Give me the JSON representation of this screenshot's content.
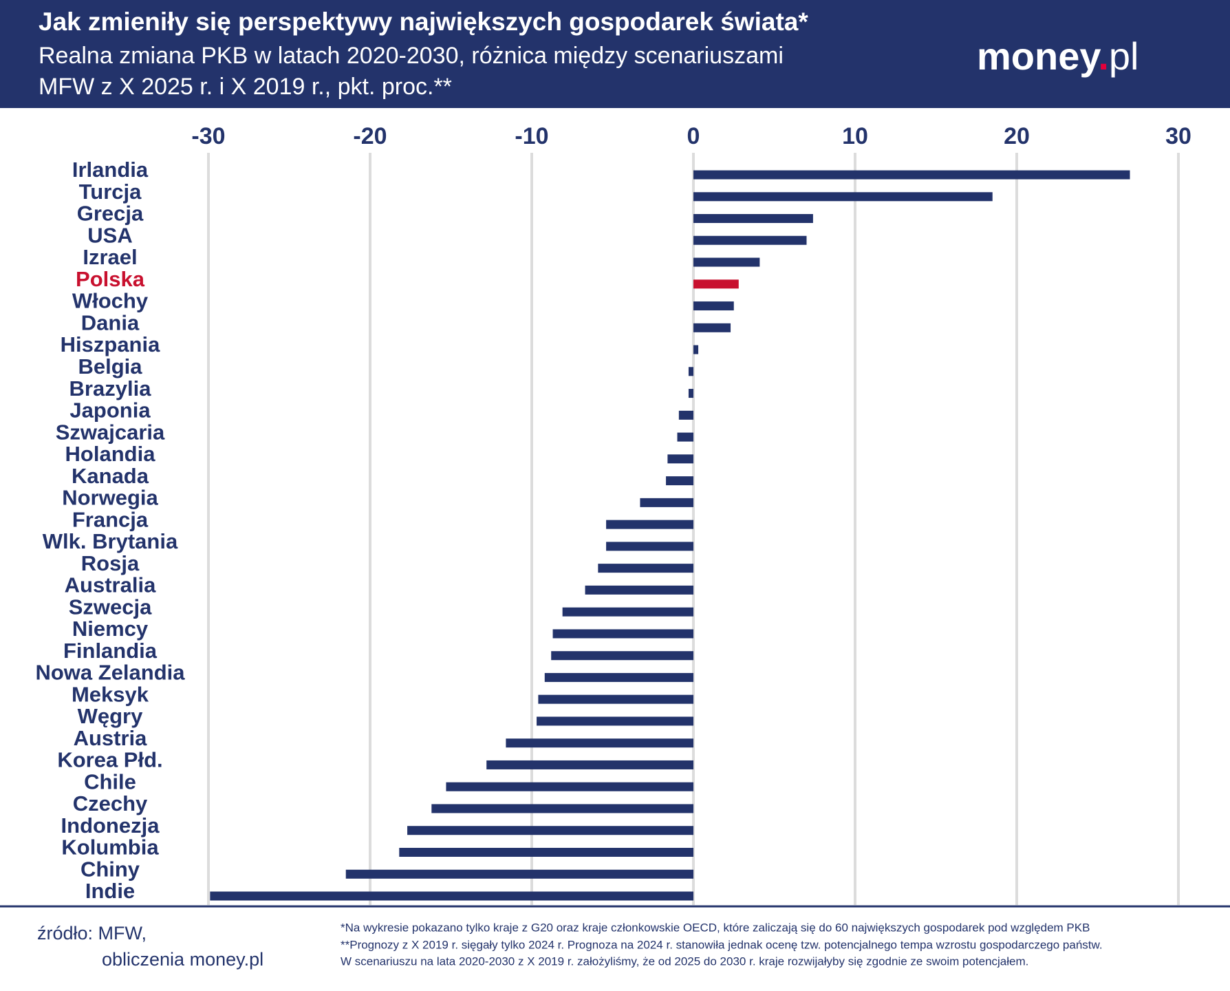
{
  "chart_data": {
    "type": "barh",
    "title": "Jak zmieniły się perspektywy największych gospodarek świata*",
    "subtitle": [
      "Realna zmiana PKB w latach 2020-2030, różnica między scenariuszami",
      "MFW z X 2025 r. i X 2019 r., pkt. proc.**"
    ],
    "logo": [
      "money",
      ".",
      "pl"
    ],
    "categories": [
      "Irlandia",
      "Turcja",
      "Grecja",
      "USA",
      "Izrael",
      "Polska",
      "Włochy",
      "Dania",
      "Hiszpania",
      "Belgia",
      "Brazylia",
      "Japonia",
      "Szwajcaria",
      "Holandia",
      "Kanada",
      "Norwegia",
      "Francja",
      "Wlk. Brytania",
      "Rosja",
      "Australia",
      "Szwecja",
      "Niemcy",
      "Finlandia",
      "Nowa Zelandia",
      "Meksyk",
      "Węgry",
      "Austria",
      "Korea Płd.",
      "Chile",
      "Czechy",
      "Indonezja",
      "Kolumbia",
      "Chiny",
      "Indie"
    ],
    "values": [
      27.0,
      18.5,
      7.4,
      7.0,
      4.1,
      2.8,
      2.5,
      2.3,
      0.3,
      -0.3,
      -0.3,
      -0.9,
      -1.0,
      -1.6,
      -1.7,
      -3.3,
      -5.4,
      -5.4,
      -5.9,
      -6.7,
      -8.1,
      -8.7,
      -8.8,
      -9.2,
      -9.6,
      -9.7,
      -11.6,
      -12.8,
      -15.3,
      -16.2,
      -17.7,
      -18.2,
      -21.5,
      -29.9
    ],
    "colors": [
      "#23336b",
      "#23336b",
      "#23336b",
      "#23336b",
      "#23336b",
      "#c8102e",
      "#23336b",
      "#23336b",
      "#23336b",
      "#23336b",
      "#23336b",
      "#23336b",
      "#23336b",
      "#23336b",
      "#23336b",
      "#23336b",
      "#23336b",
      "#23336b",
      "#23336b",
      "#23336b",
      "#23336b",
      "#23336b",
      "#23336b",
      "#23336b",
      "#23336b",
      "#23336b",
      "#23336b",
      "#23336b",
      "#23336b",
      "#23336b",
      "#23336b",
      "#23336b",
      "#23336b",
      "#23336b"
    ],
    "xlim": [
      -30,
      30
    ],
    "xticks": [
      -30,
      -20,
      -10,
      0,
      10,
      20,
      30
    ],
    "grid": true,
    "source": [
      "źródło: MFW,",
      "obliczenia money.pl"
    ],
    "notes": [
      "*Na wykresie pokazano tylko kraje z G20 oraz kraje członkowskie OECD, które zaliczają się do 60 największych gospodarek pod względem PKB",
      "**Prognozy z X 2019 r. sięgały tylko 2024 r. Prognoza na 2024 r. stanowiła jednak ocenę tzw. potencjalnego tempa wzrostu gospodarczego państw.",
      "W scenariuszu na lata 2020-2030 z X 2019 r. założyliśmy, że od 2025 do 2030 r. kraje rozwijałyby się zgodnie ze swoim potencjałem."
    ]
  }
}
